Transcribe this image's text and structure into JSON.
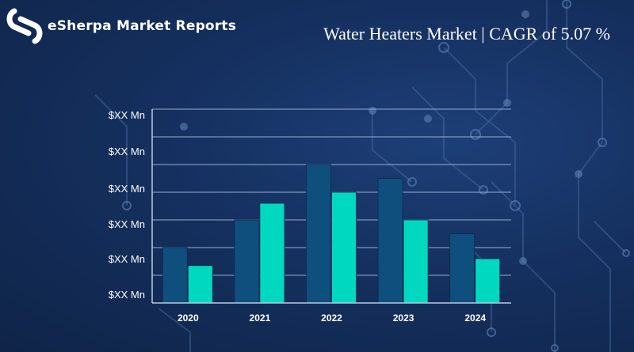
{
  "brand": {
    "name": "eSherpa Market Reports",
    "logo_icon": "esherpa-logo-icon",
    "colors": {
      "background": "#15305f",
      "logo": "#ffffff"
    }
  },
  "chart_data": {
    "type": "bar",
    "title": "Water Heaters Market | CAGR of 5.07 %",
    "categories": [
      "2020",
      "2021",
      "2022",
      "2023",
      "2024"
    ],
    "series": [
      {
        "color": "#0f4f7e",
        "values": [
          2.0,
          3.0,
          5.0,
          4.5,
          2.5
        ]
      },
      {
        "color": "#00d9c0",
        "values": [
          1.35,
          3.6,
          4.0,
          3.0,
          1.6
        ]
      }
    ],
    "y_tick_labels": [
      "$XX Mn",
      "$XX Mn",
      "$XX Mn",
      "$XX Mn",
      "$XX Mn",
      "$XX Mn"
    ],
    "ylim": [
      0,
      7
    ],
    "grid": true,
    "xlabel": "",
    "ylabel": ""
  }
}
